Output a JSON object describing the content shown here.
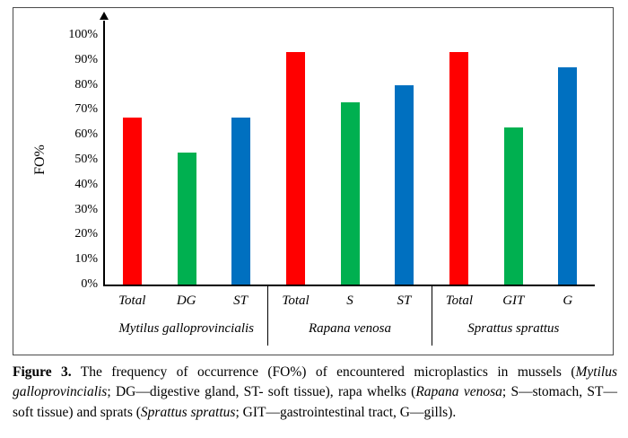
{
  "chart_data": {
    "type": "bar",
    "title": "",
    "xlabel": "",
    "ylabel": "FO%",
    "ylim": [
      0,
      100
    ],
    "grid": false,
    "legend": "none",
    "yticks": [
      {
        "value": 0,
        "label": "0%"
      },
      {
        "value": 10,
        "label": "10%"
      },
      {
        "value": 20,
        "label": "20%"
      },
      {
        "value": 30,
        "label": "30%"
      },
      {
        "value": 40,
        "label": "40%"
      },
      {
        "value": 50,
        "label": "50%"
      },
      {
        "value": 60,
        "label": "60%"
      },
      {
        "value": 70,
        "label": "70%"
      },
      {
        "value": 80,
        "label": "80%"
      },
      {
        "value": 90,
        "label": "90%"
      },
      {
        "value": 100,
        "label": "100%"
      }
    ],
    "bar_colors": [
      "#FF0000",
      "#00B050",
      "#0070C0"
    ],
    "groups": [
      {
        "name": "Mytilus galloprovincialis",
        "categories": [
          "Total",
          "DG",
          "ST"
        ],
        "values": [
          67,
          53,
          67
        ]
      },
      {
        "name": "Rapana venosa",
        "categories": [
          "Total",
          "S",
          "ST"
        ],
        "values": [
          93,
          73,
          80
        ]
      },
      {
        "name": "Sprattus sprattus",
        "categories": [
          "Total",
          "GIT",
          "G"
        ],
        "values": [
          93,
          63,
          87
        ]
      }
    ]
  },
  "caption": {
    "segments": [
      {
        "text": "Figure 3.",
        "bold": true
      },
      {
        "text": " The frequency of occurrence (FO%) of encountered microplastics in mussels ("
      },
      {
        "text": "Mytilus galloprovincialis",
        "italic": true
      },
      {
        "text": "; DG—digestive gland, ST- soft tissue), rapa whelks ("
      },
      {
        "text": "Rapana venosa",
        "italic": true
      },
      {
        "text": "; S—stomach, ST—soft tissue) and sprats ("
      },
      {
        "text": "Sprattus sprattus",
        "italic": true
      },
      {
        "text": "; GIT—gastrointestinal tract, G—gills)."
      }
    ]
  }
}
